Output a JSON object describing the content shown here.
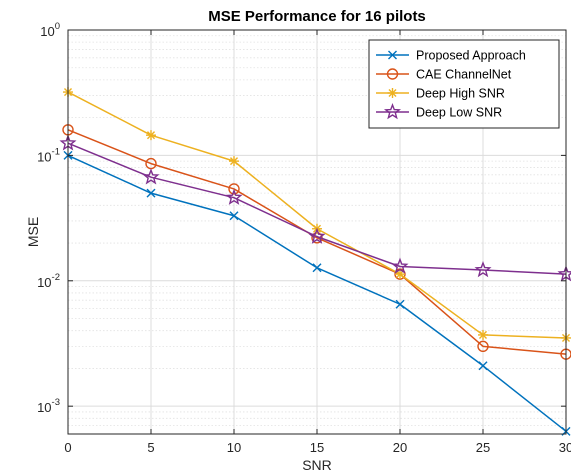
{
  "chart_data": {
    "type": "line",
    "title": "MSE Performance for 16 pilots",
    "xlabel": "SNR",
    "ylabel": "MSE",
    "x": [
      0,
      5,
      10,
      15,
      20,
      25,
      30
    ],
    "xlim": [
      0,
      30
    ],
    "ylim": [
      0.0006,
      1
    ],
    "yscale": "log",
    "x_ticks": [
      "0",
      "5",
      "10",
      "15",
      "20",
      "25",
      "30"
    ],
    "y_ticks": [
      {
        "base": "10",
        "exp": "0",
        "value": 1
      },
      {
        "base": "10",
        "exp": "-1",
        "value": 0.1
      },
      {
        "base": "10",
        "exp": "-2",
        "value": 0.01
      },
      {
        "base": "10",
        "exp": "-3",
        "value": 0.001
      }
    ],
    "grid": true,
    "minor_grid": true,
    "legend_position": "top-right",
    "series": [
      {
        "name": "Proposed Approach",
        "color": "#0072BD",
        "marker": "x",
        "values": [
          0.1,
          0.05,
          0.033,
          0.0127,
          0.0065,
          0.0021,
          0.00063
        ]
      },
      {
        "name": "CAE ChannelNet",
        "color": "#D95319",
        "marker": "o",
        "values": [
          0.16,
          0.086,
          0.054,
          0.022,
          0.0113,
          0.003,
          0.0026
        ]
      },
      {
        "name": "Deep High SNR",
        "color": "#EDB120",
        "marker": "*",
        "values": [
          0.32,
          0.145,
          0.09,
          0.026,
          0.0113,
          0.0037,
          0.0035
        ]
      },
      {
        "name": "Deep Low SNR",
        "color": "#7E2F8E",
        "marker": "star",
        "values": [
          0.125,
          0.067,
          0.046,
          0.0225,
          0.013,
          0.0122,
          0.0113
        ]
      }
    ]
  }
}
